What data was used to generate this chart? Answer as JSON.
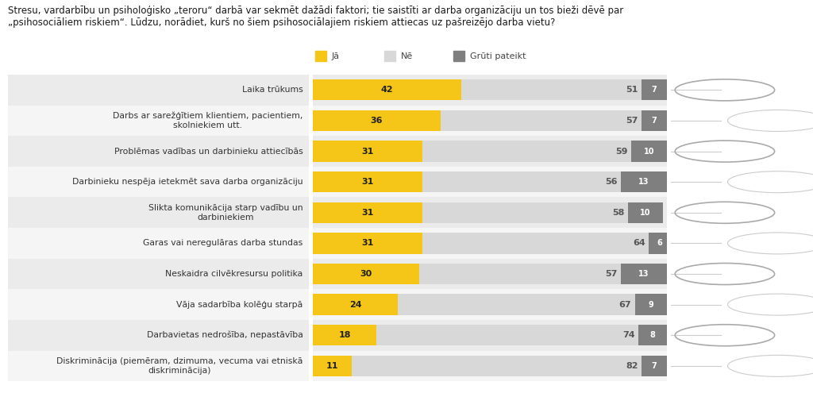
{
  "title_line1": "Stresu, vardarbību un psiholoģisko „teroru“ darbā var sekmēt dažādi faktori; tie saistīti ar darba organizāciju un tos bieži dēvē par",
  "title_line2": "„psihosociāliem riskiem“. Lūdzu, norādiet, kurš no šiem psihosociālajiem riskiem attiecas uz pašreizējo darba vietu?",
  "categories": [
    "Laika trūkums",
    "Darbs ar sarežģītiem klientiem, pacientiem,\nskolniekiem utt.",
    "Problēmas vadības un darbinieku attiecībās",
    "Darbinieku nespēja ietekmēt sava darba organizāciju",
    "Slikta komunikācija starp vadību un\ndarbiniekiem",
    "Garas vai neregulāras darba stundas",
    "Neskaidra cilvēkresursu politika",
    "Vāja sadarbība kolēģu starpā",
    "Darbavietas nedrošība, nepastāvība",
    "Diskriminācija (piemēram, dzimuma, vecuma vai etniskā\ndiskriminācija)"
  ],
  "ja_values": [
    42,
    36,
    31,
    31,
    31,
    31,
    30,
    24,
    18,
    11
  ],
  "ne_values": [
    51,
    57,
    59,
    56,
    58,
    64,
    57,
    67,
    74,
    82
  ],
  "gruti_values": [
    7,
    7,
    10,
    13,
    10,
    6,
    13,
    9,
    8,
    7
  ],
  "color_ja": "#f5c518",
  "color_ne": "#d8d8d8",
  "color_gruti": "#7f7f7f",
  "color_row_even": "#ebebeb",
  "color_row_odd": "#f5f5f5",
  "legend_labels": [
    "Jā",
    "Nē",
    "Grūti pateikt"
  ],
  "title_fontsize": 8.5,
  "label_fontsize": 7.8,
  "bar_value_fontsize": 8.0,
  "bar_height": 0.68,
  "xlim": 100
}
